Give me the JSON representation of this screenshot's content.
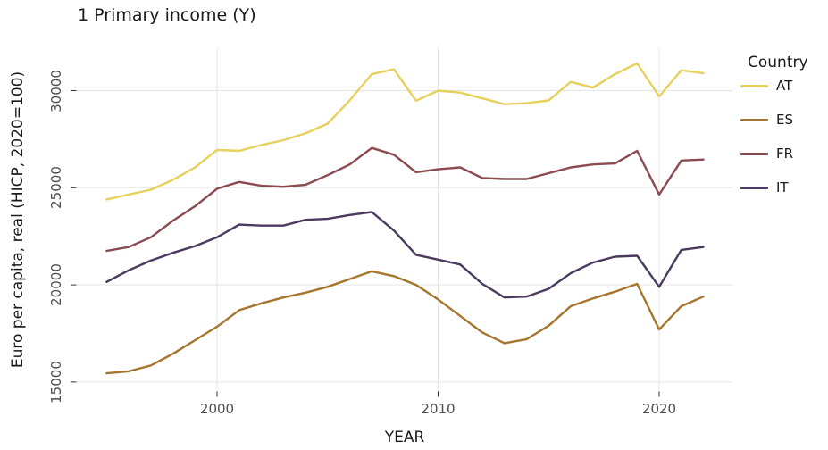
{
  "chart_data": {
    "type": "line",
    "title": "1 Primary income (Y)",
    "xlabel": "YEAR",
    "ylabel": "Euro per capita, real (HICP, 2020=100)",
    "legend_title": "Country",
    "legend_position": "right",
    "grid": true,
    "x_ticks": [
      2000,
      2010,
      2020
    ],
    "y_ticks": [
      15000,
      20000,
      25000,
      30000
    ],
    "xlim": [
      1993.65,
      2023.35
    ],
    "ylim": [
      14400,
      32200
    ],
    "x": [
      1995,
      1996,
      1997,
      1998,
      1999,
      2000,
      2001,
      2002,
      2003,
      2004,
      2005,
      2006,
      2007,
      2008,
      2009,
      2010,
      2011,
      2012,
      2013,
      2014,
      2015,
      2016,
      2017,
      2018,
      2019,
      2020,
      2021,
      2022
    ],
    "series": [
      {
        "name": "AT",
        "color": "#e7d05c",
        "values": [
          24400,
          24650,
          24900,
          25400,
          26050,
          26950,
          26900,
          27200,
          27450,
          27800,
          28300,
          29500,
          30850,
          31100,
          29480,
          30000,
          29900,
          29600,
          29300,
          29350,
          29500,
          30450,
          30150,
          30850,
          31400,
          29700,
          31050,
          30900
        ]
      },
      {
        "name": "ES",
        "color": "#a6752e",
        "values": [
          15450,
          15550,
          15850,
          16450,
          17150,
          17850,
          18700,
          19050,
          19350,
          19600,
          19900,
          20300,
          20700,
          20450,
          20000,
          19250,
          18400,
          17550,
          17000,
          17200,
          17900,
          18900,
          19300,
          19650,
          20050,
          17700,
          18900,
          19400
        ]
      },
      {
        "name": "FR",
        "color": "#8a4a50",
        "values": [
          21750,
          21950,
          22450,
          23300,
          24050,
          24950,
          25300,
          25100,
          25050,
          25150,
          25650,
          26200,
          27050,
          26700,
          25800,
          25950,
          26050,
          25500,
          25450,
          25450,
          25750,
          26050,
          26200,
          26250,
          26900,
          24650,
          26400,
          26450
        ]
      },
      {
        "name": "IT",
        "color": "#4a3a5f",
        "values": [
          20150,
          20750,
          21250,
          21650,
          22000,
          22450,
          23100,
          23050,
          23050,
          23350,
          23400,
          23600,
          23750,
          22800,
          21550,
          21300,
          21050,
          20050,
          19350,
          19400,
          19800,
          20600,
          21150,
          21450,
          21500,
          19900,
          21800,
          21950
        ]
      }
    ],
    "style": {
      "grid_color": "#e5e5e5",
      "tick_color": "#333333",
      "tick_label_color": "#4d4d4d",
      "text_color": "#1a1a1a",
      "background": "#ffffff"
    }
  }
}
